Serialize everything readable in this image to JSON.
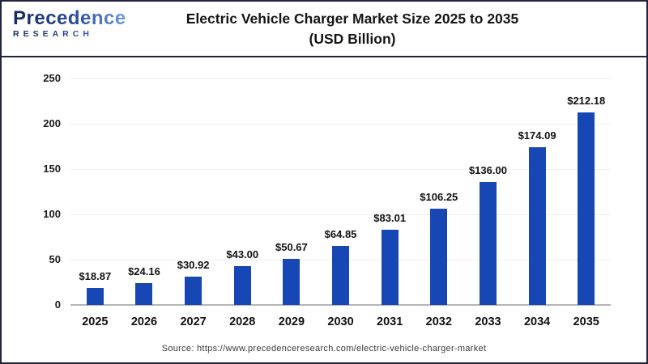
{
  "logo": {
    "brand": "Precedence",
    "sub_brand": "RESEARCH"
  },
  "header": {
    "title_line1": "Electric Vehicle Charger Market Size 2025 to 2035",
    "title_line2": "(USD Billion)"
  },
  "chart_data": {
    "type": "bar",
    "title": "Electric Vehicle Charger Market Size 2025 to 2035 (USD Billion)",
    "categories": [
      "2025",
      "2026",
      "2027",
      "2028",
      "2029",
      "2030",
      "2031",
      "2032",
      "2033",
      "2034",
      "2035"
    ],
    "values": [
      18.87,
      24.16,
      30.92,
      43.0,
      50.67,
      64.85,
      83.01,
      106.25,
      136.0,
      174.09,
      212.18
    ],
    "value_labels": [
      "$18.87",
      "$24.16",
      "$30.92",
      "$43.00",
      "$50.67",
      "$64.85",
      "$83.01",
      "$106.25",
      "$136.00",
      "$174.09",
      "$212.18"
    ],
    "xlabel": "",
    "ylabel": "",
    "ylim": [
      0,
      250
    ],
    "yticks": [
      0,
      50,
      100,
      150,
      200,
      250
    ],
    "grid": true,
    "legend": "none",
    "bar_color": "#1747b5"
  },
  "footer": {
    "source_text": "Source: https://www.precedenceresearch.com/electric-vehicle-charger-market"
  }
}
